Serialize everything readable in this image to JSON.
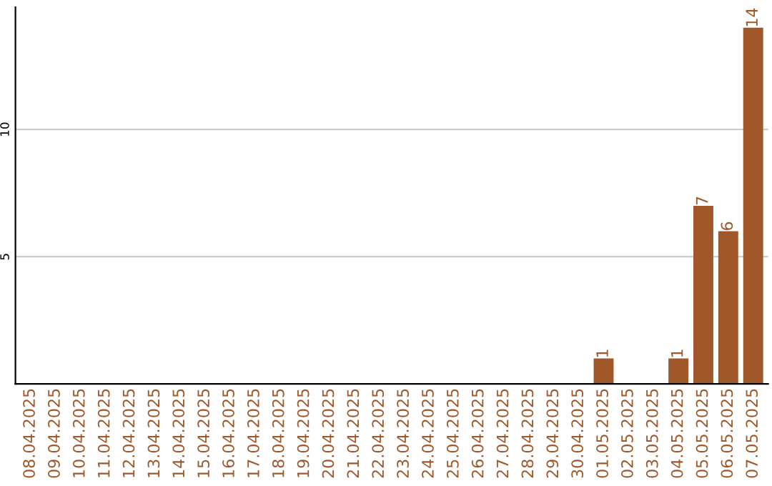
{
  "chart_data": {
    "type": "bar",
    "categories": [
      "08.04.2025",
      "09.04.2025",
      "10.04.2025",
      "11.04.2025",
      "12.04.2025",
      "13.04.2025",
      "14.04.2025",
      "15.04.2025",
      "16.04.2025",
      "17.04.2025",
      "18.04.2025",
      "19.04.2025",
      "20.04.2025",
      "21.04.2025",
      "22.04.2025",
      "23.04.2025",
      "24.04.2025",
      "25.04.2025",
      "26.04.2025",
      "27.04.2025",
      "28.04.2025",
      "29.04.2025",
      "30.04.2025",
      "01.05.2025",
      "02.05.2025",
      "03.05.2025",
      "04.05.2025",
      "05.05.2025",
      "06.05.2025",
      "07.05.2025"
    ],
    "values": [
      0,
      0,
      0,
      0,
      0,
      0,
      0,
      0,
      0,
      0,
      0,
      0,
      0,
      0,
      0,
      0,
      0,
      0,
      0,
      0,
      0,
      0,
      0,
      1,
      0,
      0,
      1,
      7,
      6,
      14
    ],
    "value_labels": [
      null,
      null,
      null,
      null,
      null,
      null,
      null,
      null,
      null,
      null,
      null,
      null,
      null,
      null,
      null,
      null,
      null,
      null,
      null,
      null,
      null,
      null,
      null,
      "1",
      null,
      null,
      "1",
      "7",
      "6",
      "14"
    ],
    "color": "#a0582a",
    "ylim": [
      0,
      14.8
    ],
    "yticks": [
      5,
      10
    ],
    "grid": "y",
    "legend": false
  }
}
